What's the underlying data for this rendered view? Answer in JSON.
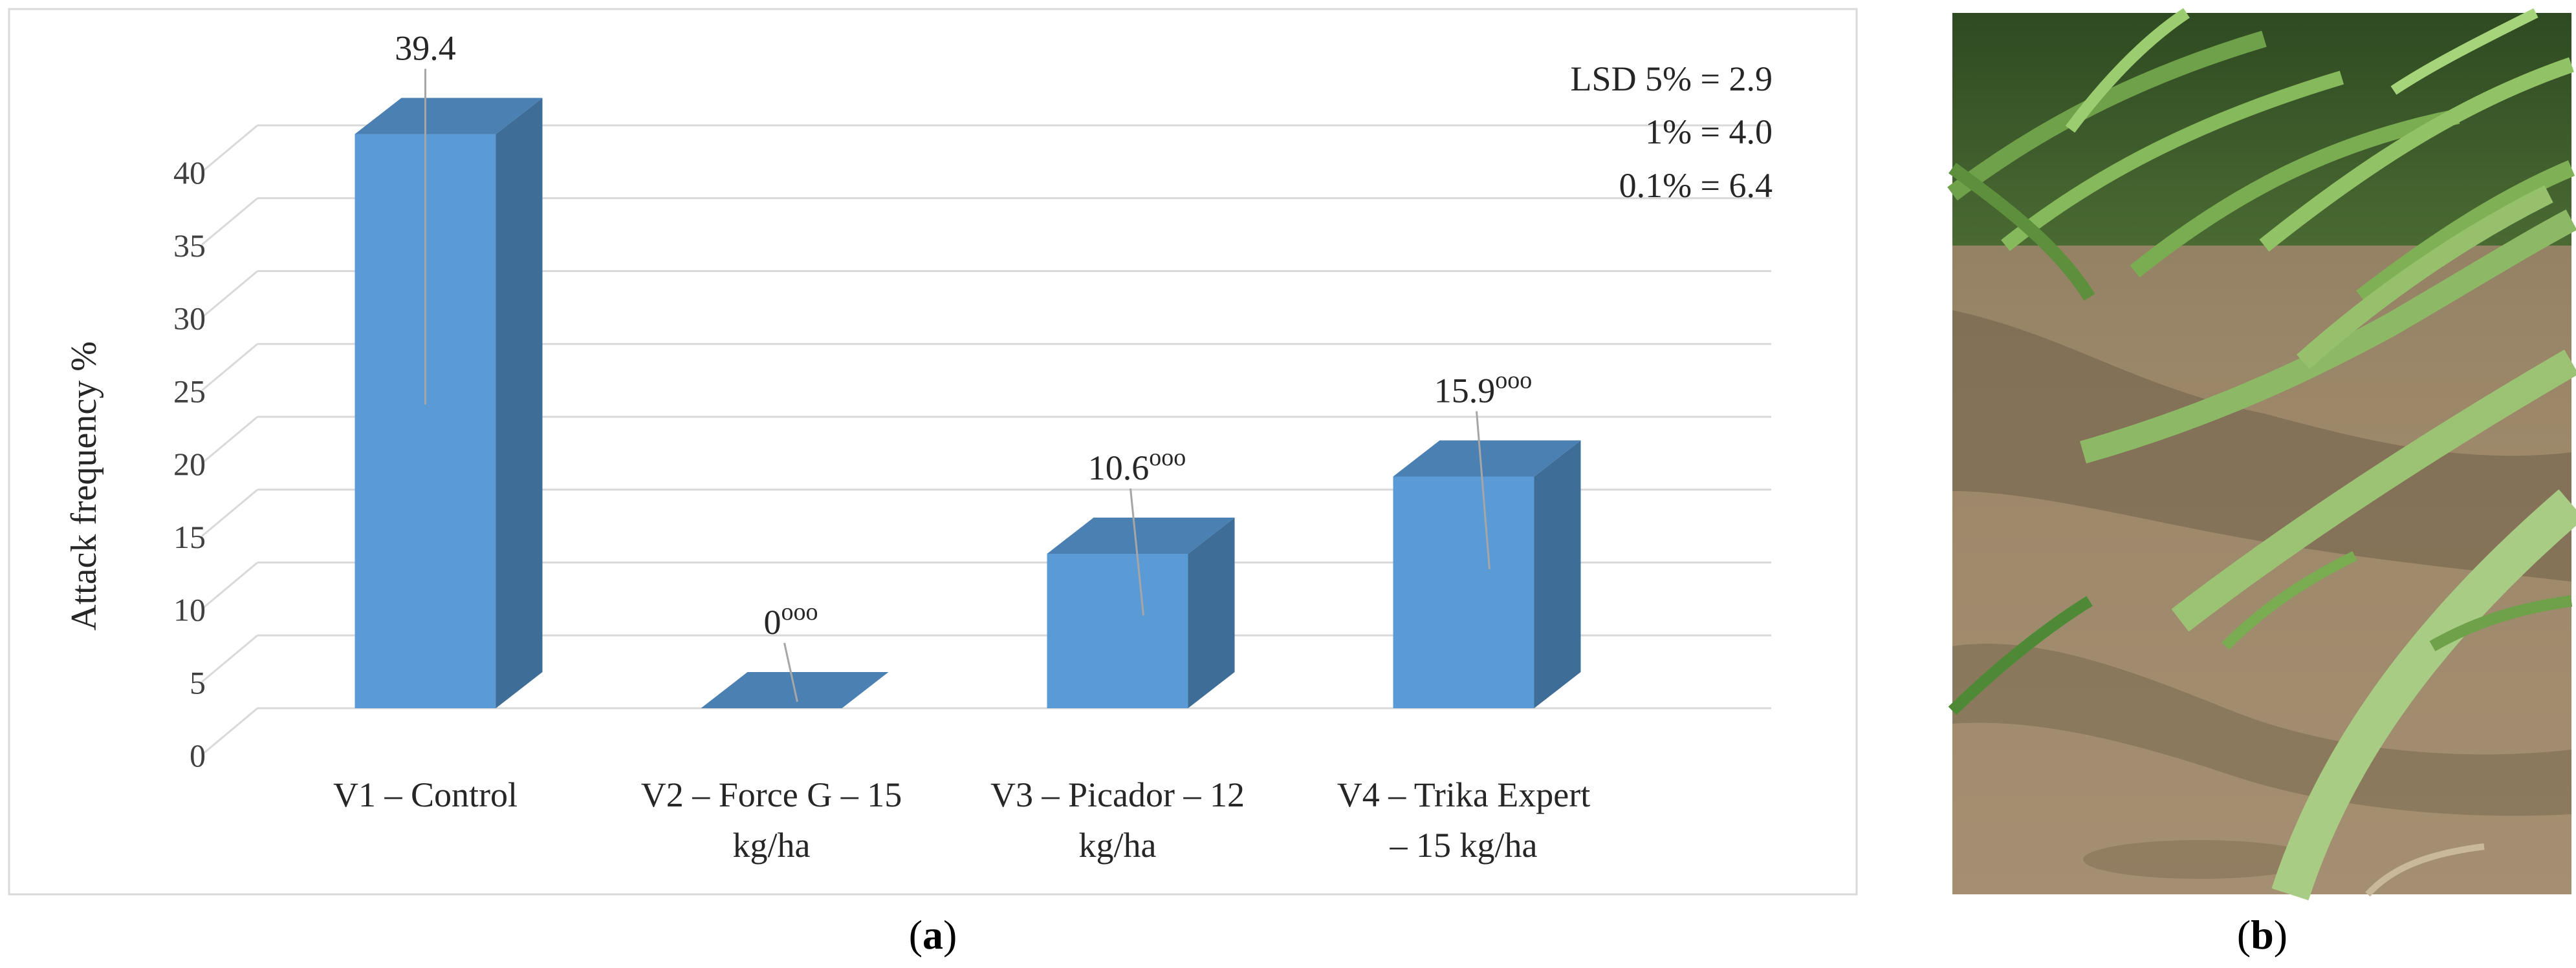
{
  "chart_data": {
    "type": "bar",
    "style": "3d-column",
    "categories": [
      [
        "V1 – Control"
      ],
      [
        "V2 – Force G – 15",
        "kg/ha"
      ],
      [
        "V3 – Picador – 12",
        "kg/ha"
      ],
      [
        "V4 – Trika Expert",
        "– 15 kg/ha"
      ]
    ],
    "values": [
      39.4,
      0,
      10.6,
      15.9
    ],
    "value_labels": [
      {
        "main": "39.4",
        "sup": ""
      },
      {
        "main": "0",
        "sup": "ooo"
      },
      {
        "main": "10.6",
        "sup": "ooo"
      },
      {
        "main": "15.9",
        "sup": "ooo"
      }
    ],
    "ylabel": "Attack frequency %",
    "xlabel": "",
    "ylim": [
      0,
      40
    ],
    "yticks": [
      0,
      5,
      10,
      15,
      20,
      25,
      30,
      35,
      40
    ],
    "grid": true,
    "annotations": [
      "LSD 5% = 2.9",
      "1% = 4.0",
      "0.1% = 6.4"
    ],
    "colors": {
      "front": "#5b9bd5",
      "side": "#3e6e98",
      "top": "#4a80b2",
      "grid": "#d9d9d9"
    }
  },
  "panels": {
    "a_label": "a",
    "b_label": "b",
    "photo_subject": "maize-plants-in-soil-photo"
  }
}
